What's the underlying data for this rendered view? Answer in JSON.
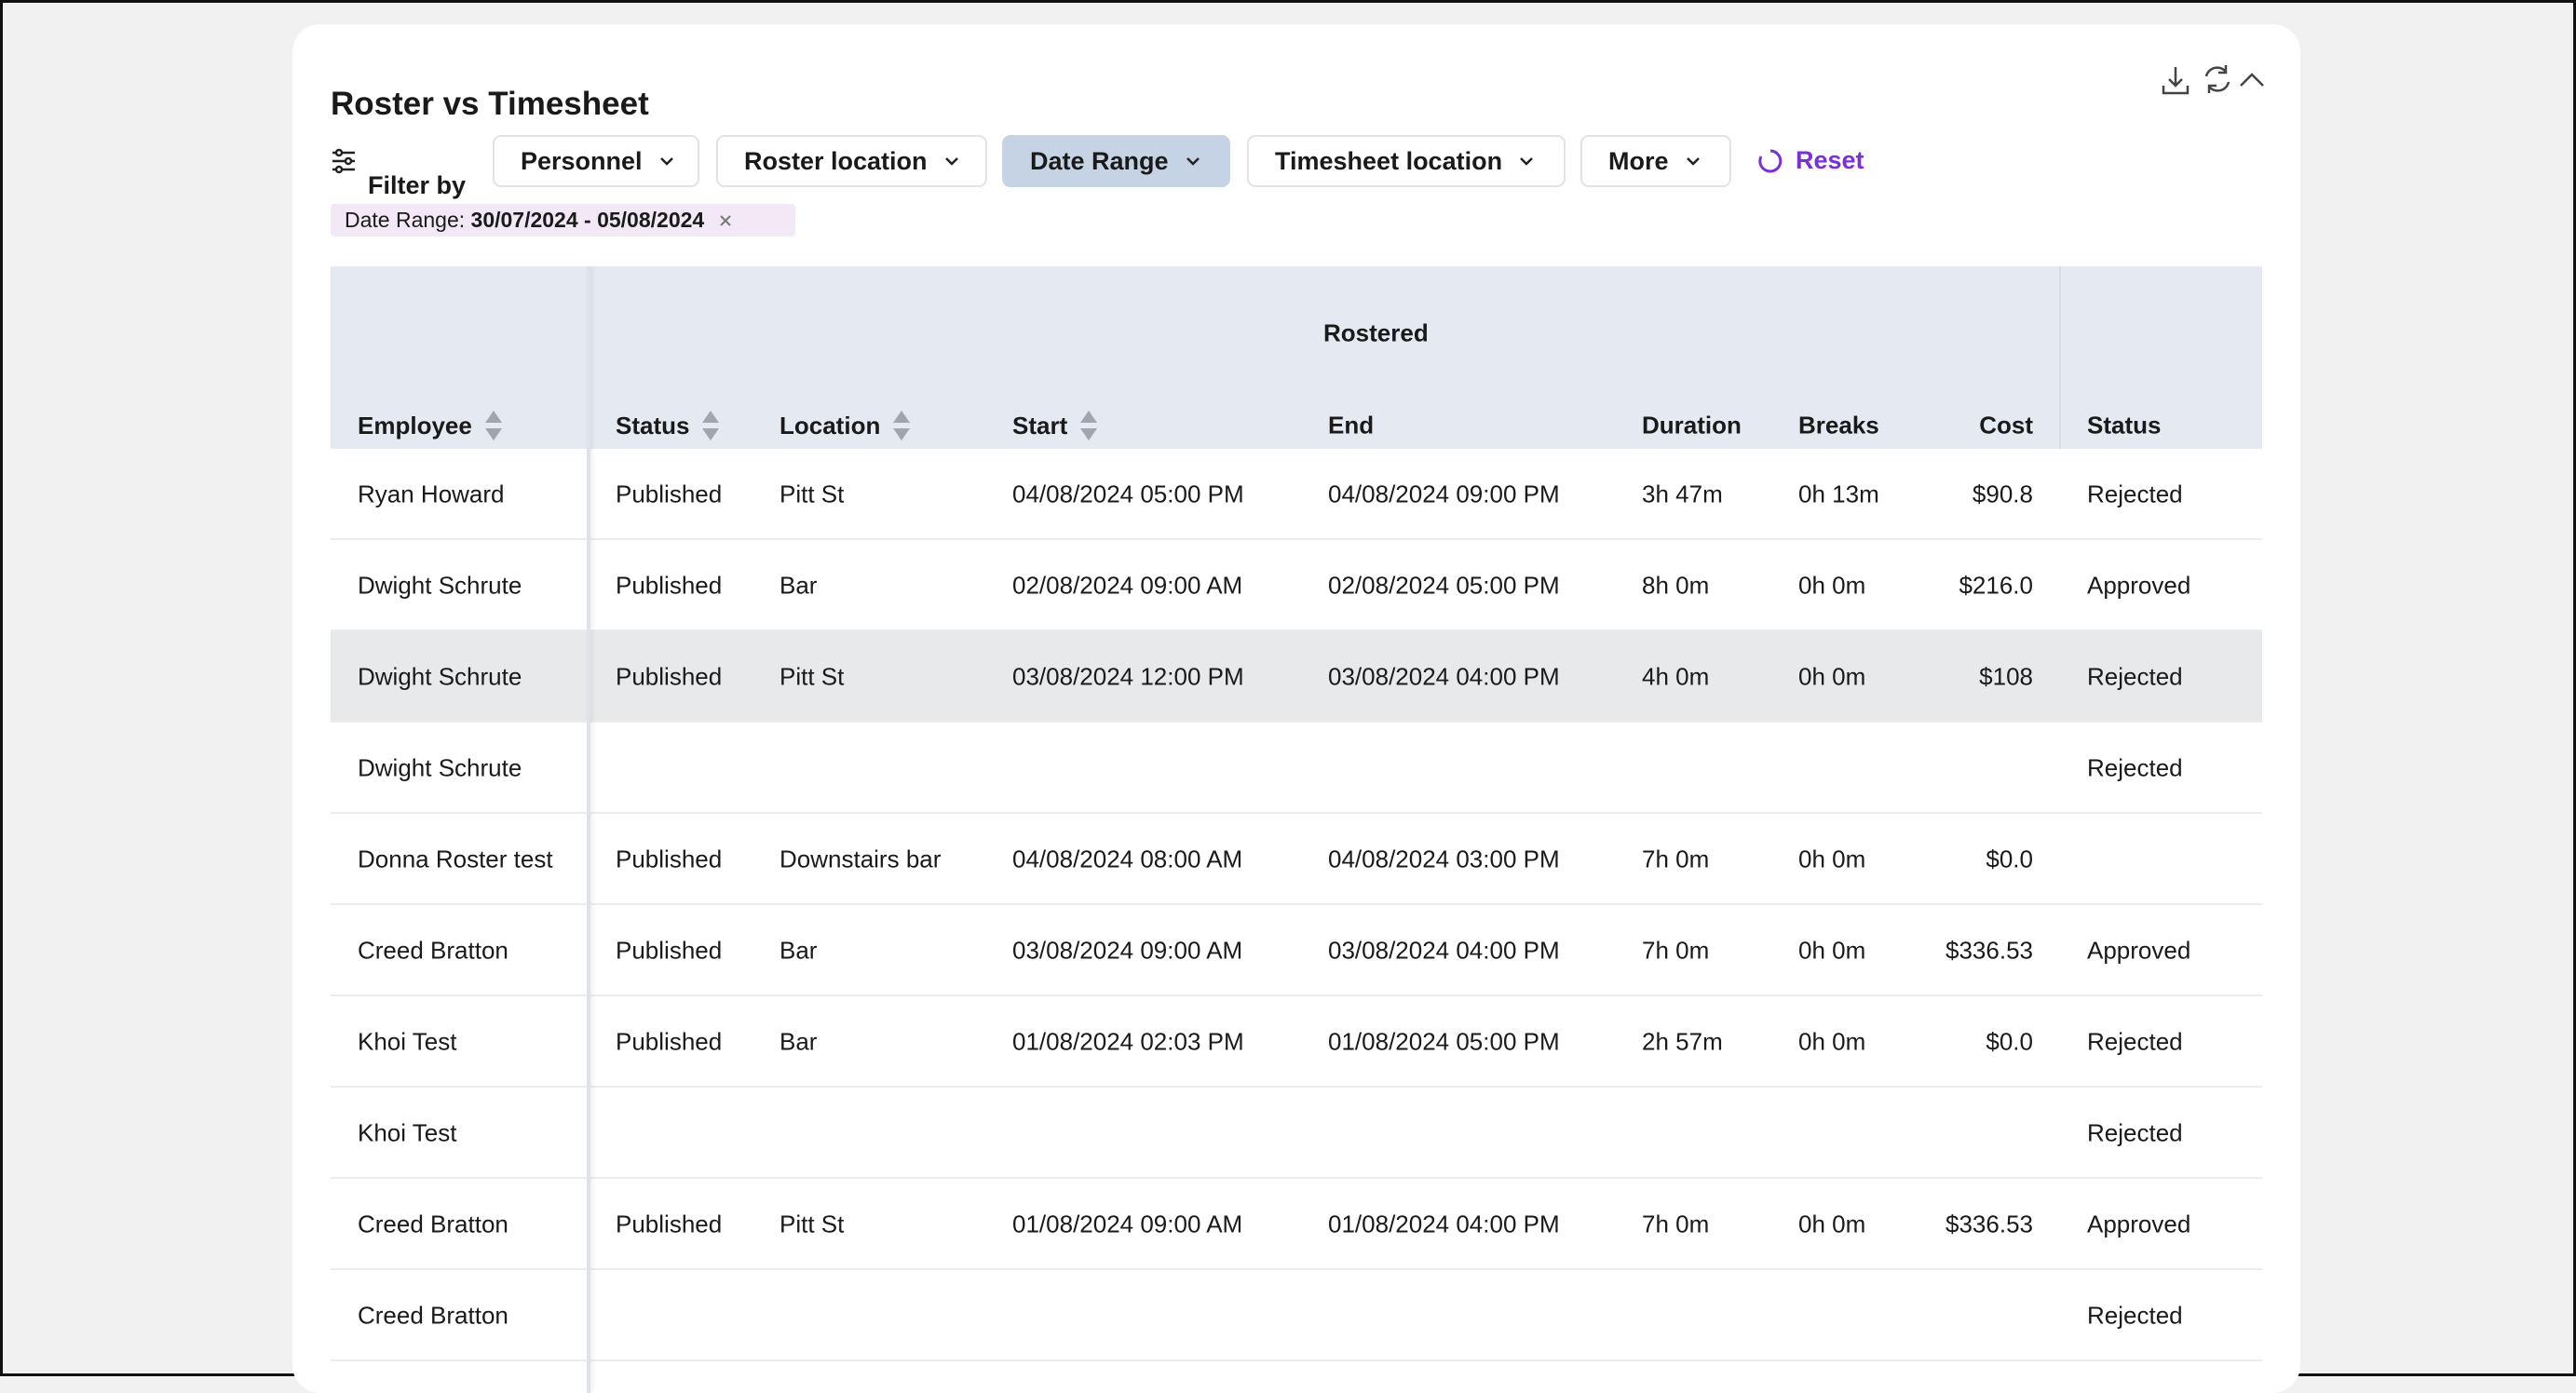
{
  "header": {
    "title": "Roster vs Timesheet"
  },
  "filter_label": "Filter by",
  "filters": [
    "Personnel",
    "Roster location",
    "Date Range",
    "Timesheet location",
    "More"
  ],
  "reset": "Reset",
  "chip": {
    "label": "Date Range:",
    "value": "30/07/2024 - 05/08/2024"
  },
  "table": {
    "group": "Rostered",
    "columns": [
      "Employee",
      "Status",
      "Location",
      "Start",
      "End",
      "Duration",
      "Breaks",
      "Cost",
      "Status"
    ],
    "rows": [
      [
        "Ryan Howard",
        "Published",
        "Pitt St",
        "04/08/2024 05:00 PM",
        "04/08/2024 09:00 PM",
        "3h 47m",
        "0h 13m",
        "$90.8",
        "Rejected"
      ],
      [
        "Dwight Schrute",
        "Published",
        "Bar",
        "02/08/2024 09:00 AM",
        "02/08/2024 05:00 PM",
        "8h 0m",
        "0h 0m",
        "$216.0",
        "Approved"
      ],
      [
        "Dwight Schrute",
        "Published",
        "Pitt St",
        "03/08/2024 12:00 PM",
        "03/08/2024 04:00 PM",
        "4h 0m",
        "0h 0m",
        "$108",
        "Rejected"
      ],
      [
        "Dwight Schrute",
        null,
        null,
        null,
        null,
        null,
        null,
        null,
        "Rejected"
      ],
      [
        "Donna Roster test",
        "Published",
        "Downstairs bar",
        "04/08/2024 08:00 AM",
        "04/08/2024 03:00 PM",
        "7h 0m",
        "0h 0m",
        "$0.0",
        null
      ],
      [
        "Creed Bratton",
        "Published",
        "Bar",
        "03/08/2024 09:00 AM",
        "03/08/2024 04:00 PM",
        "7h 0m",
        "0h 0m",
        "$336.53",
        "Approved"
      ],
      [
        "Khoi Test",
        "Published",
        "Bar",
        "01/08/2024 02:03 PM",
        "01/08/2024 05:00 PM",
        "2h 57m",
        "0h 0m",
        "$0.0",
        "Rejected"
      ],
      [
        "Khoi Test",
        null,
        null,
        null,
        null,
        null,
        null,
        null,
        "Rejected"
      ],
      [
        "Creed Bratton",
        "Published",
        "Pitt St",
        "01/08/2024 09:00 AM",
        "01/08/2024 04:00 PM",
        "7h 0m",
        "0h 0m",
        "$336.53",
        "Approved"
      ],
      [
        "Creed Bratton",
        null,
        null,
        null,
        null,
        null,
        null,
        null,
        "Rejected"
      ]
    ]
  }
}
